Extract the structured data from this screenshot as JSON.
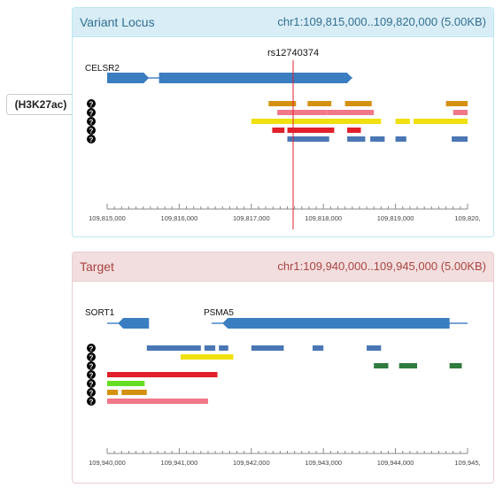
{
  "tag": {
    "label": "(H3K27ac)"
  },
  "help_glyph": "?",
  "variant": {
    "title": "Variant Locus",
    "coords": "chr1:109,815,000..109,820,000 (5.00KB)",
    "snp": {
      "label": "rs12740374",
      "pos": 109817580
    },
    "genes": [
      {
        "name": "CELSR2",
        "start": 109815000,
        "end": 109818400,
        "strand": "+",
        "gap": [
          109815580,
          109815720
        ]
      }
    ],
    "tracks": [
      {
        "color": "#d4900f",
        "segs": [
          [
            109817240,
            109817620
          ],
          [
            109817780,
            109818110
          ],
          [
            109818300,
            109818670
          ],
          [
            109819700,
            109820000
          ]
        ]
      },
      {
        "color": "#f07888",
        "segs": [
          [
            109817360,
            109818050
          ],
          [
            109818050,
            109818700
          ],
          [
            109819800,
            109820000
          ]
        ]
      },
      {
        "color": "#f0e010",
        "segs": [
          [
            109817000,
            109818800
          ],
          [
            109819000,
            109819200
          ],
          [
            109819250,
            109820000
          ]
        ]
      },
      {
        "color": "#e0202a",
        "segs": [
          [
            109817290,
            109817460
          ],
          [
            109817500,
            109818150
          ],
          [
            109818330,
            109818520
          ]
        ]
      },
      {
        "color": "#4a77b4",
        "segs": [
          [
            109817500,
            109818080
          ],
          [
            109818330,
            109818580
          ],
          [
            109818650,
            109818850
          ],
          [
            109819000,
            109819150
          ],
          [
            109819780,
            109820000
          ]
        ]
      }
    ],
    "axis": {
      "start": 109815000,
      "end": 109820000,
      "labels": [
        "109,815,000",
        "109,816,000",
        "109,817,000",
        "109,818,000",
        "109,819,000",
        "109,820,"
      ]
    }
  },
  "target": {
    "title": "Target",
    "coords": "chr1:109,940,000..109,945,000 (5.00KB)",
    "genes": [
      {
        "name": "SORT1",
        "start": 109940000,
        "end": 109940580,
        "strand": "-",
        "body": [
          109940150,
          109940580
        ]
      },
      {
        "name": "PSMA5",
        "start": 109941450,
        "end": 109945000,
        "strand": "-",
        "body": [
          109941600,
          109944750
        ]
      }
    ],
    "tracks": [
      {
        "color": "#4a77b4",
        "segs": [
          [
            109940550,
            109941300
          ],
          [
            109941350,
            109941500
          ],
          [
            109941550,
            109941680
          ],
          [
            109942000,
            109942450
          ],
          [
            109942850,
            109943000
          ],
          [
            109943600,
            109943800
          ]
        ]
      },
      {
        "color": "#f0e010",
        "segs": [
          [
            109941020,
            109941750
          ]
        ]
      },
      {
        "color": "#2e7d3e",
        "segs": [
          [
            109943700,
            109943900
          ],
          [
            109944050,
            109944300
          ],
          [
            109944750,
            109944920
          ]
        ]
      },
      {
        "color": "#e0202a",
        "segs": [
          [
            109940000,
            109941530
          ]
        ]
      },
      {
        "color": "#66dd22",
        "segs": [
          [
            109940000,
            109940520
          ]
        ]
      },
      {
        "color": "#d4900f",
        "segs": [
          [
            109940000,
            109940150
          ],
          [
            109940200,
            109940550
          ]
        ]
      },
      {
        "color": "#f07888",
        "segs": [
          [
            109940000,
            109941400
          ]
        ]
      }
    ],
    "axis": {
      "start": 109940000,
      "end": 109945000,
      "labels": [
        "109,940,000",
        "109,941,000",
        "109,942,000",
        "109,943,000",
        "109,944,000",
        "109,945,"
      ]
    }
  }
}
